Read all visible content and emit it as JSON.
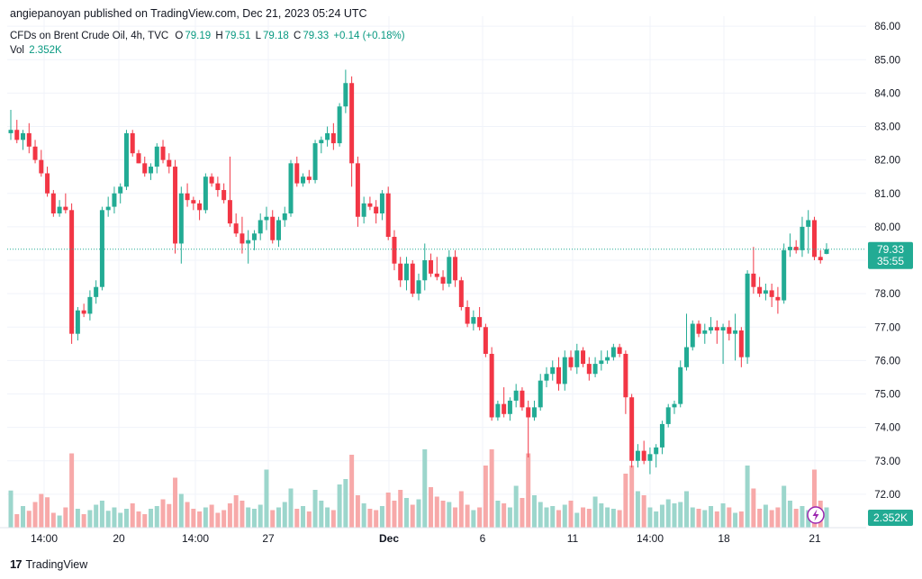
{
  "header": {
    "publisher": "angiepanoyan published on TradingView.com, Dec 21, 2023 05:24 UTC"
  },
  "legend": {
    "symbol": "CFDs on Brent Crude Oil, 4h, TVC",
    "o_label": "O",
    "o_value": "79.19",
    "h_label": "H",
    "h_value": "79.51",
    "l_label": "L",
    "l_value": "79.18",
    "c_label": "C",
    "c_value": "79.33",
    "change": "+0.14 (+0.18%)",
    "vol_label": "Vol",
    "vol_value": "2.352K"
  },
  "price_badge": {
    "price": "79.33",
    "countdown": "35:55",
    "color": "#22ab94"
  },
  "volume_badge": {
    "value": "2.352K",
    "color": "#22ab94"
  },
  "colors": {
    "up": "#22ab94",
    "down": "#f23645",
    "vol_up": "#9cd6cc",
    "vol_down": "#f7a9a9"
  },
  "footer": {
    "brand": "TradingView",
    "logo_text": "17"
  },
  "chart_data": {
    "type": "candlestick",
    "symbol": "CFDs on Brent Crude Oil",
    "interval": "4h",
    "y_ticks": [
      "86.00",
      "85.00",
      "84.00",
      "83.00",
      "82.00",
      "81.00",
      "80.00",
      "79.00",
      "78.00",
      "77.00",
      "76.00",
      "75.00",
      "74.00",
      "73.00",
      "72.00"
    ],
    "y_range": [
      71.0,
      86.3
    ],
    "x_tick_labels": [
      "14:00",
      "20",
      "14:00",
      "27",
      "Dec",
      "6",
      "11",
      "14:00",
      "18",
      "21"
    ],
    "last_price": 79.33,
    "grid": true,
    "ohlc": [
      [
        82.8,
        83.5,
        82.6,
        82.9
      ],
      [
        82.9,
        83.2,
        82.5,
        82.6
      ],
      [
        82.6,
        82.9,
        82.3,
        82.8
      ],
      [
        82.8,
        83.1,
        82.2,
        82.4
      ],
      [
        82.4,
        82.6,
        81.9,
        82.0
      ],
      [
        82.0,
        82.3,
        81.5,
        81.6
      ],
      [
        81.6,
        81.8,
        80.9,
        81.0
      ],
      [
        81.0,
        81.1,
        80.3,
        80.4
      ],
      [
        80.4,
        80.8,
        80.3,
        80.6
      ],
      [
        80.6,
        81.0,
        80.4,
        80.5
      ],
      [
        80.5,
        80.7,
        76.5,
        76.8
      ],
      [
        76.8,
        77.6,
        76.6,
        77.5
      ],
      [
        77.5,
        77.7,
        77.3,
        77.4
      ],
      [
        77.4,
        78.1,
        77.2,
        77.9
      ],
      [
        77.9,
        78.4,
        77.7,
        78.2
      ],
      [
        78.2,
        80.6,
        78.1,
        80.5
      ],
      [
        80.5,
        80.9,
        80.3,
        80.6
      ],
      [
        80.6,
        81.2,
        80.4,
        81.0
      ],
      [
        81.0,
        81.3,
        80.7,
        81.2
      ],
      [
        81.2,
        82.9,
        81.1,
        82.8
      ],
      [
        82.8,
        82.9,
        82.1,
        82.2
      ],
      [
        82.2,
        82.3,
        81.9,
        81.9
      ],
      [
        81.9,
        82.1,
        81.5,
        81.6
      ],
      [
        81.6,
        81.9,
        81.4,
        81.8
      ],
      [
        81.8,
        82.5,
        81.6,
        82.4
      ],
      [
        82.4,
        82.6,
        81.9,
        82.0
      ],
      [
        82.0,
        82.2,
        81.6,
        81.8
      ],
      [
        81.8,
        82.0,
        79.2,
        79.5
      ],
      [
        79.5,
        81.2,
        78.9,
        81.0
      ],
      [
        81.0,
        81.3,
        80.6,
        80.8
      ],
      [
        80.8,
        80.9,
        80.5,
        80.7
      ],
      [
        80.7,
        80.8,
        80.2,
        80.5
      ],
      [
        80.5,
        81.6,
        80.4,
        81.5
      ],
      [
        81.5,
        81.6,
        81.2,
        81.3
      ],
      [
        81.3,
        81.5,
        80.9,
        81.1
      ],
      [
        81.1,
        81.3,
        80.7,
        80.8
      ],
      [
        80.8,
        82.1,
        80.0,
        80.1
      ],
      [
        80.1,
        80.4,
        79.7,
        79.8
      ],
      [
        79.8,
        80.3,
        79.2,
        79.5
      ],
      [
        79.5,
        79.9,
        78.9,
        79.6
      ],
      [
        79.6,
        79.9,
        79.3,
        79.8
      ],
      [
        79.8,
        80.4,
        79.6,
        80.2
      ],
      [
        80.2,
        80.6,
        79.9,
        80.3
      ],
      [
        80.3,
        80.5,
        79.5,
        79.6
      ],
      [
        79.6,
        80.3,
        79.4,
        80.2
      ],
      [
        80.2,
        80.6,
        80.0,
        80.4
      ],
      [
        80.4,
        82.0,
        80.3,
        81.9
      ],
      [
        81.9,
        82.1,
        81.2,
        81.3
      ],
      [
        81.3,
        81.6,
        81.2,
        81.5
      ],
      [
        81.5,
        81.7,
        81.3,
        81.4
      ],
      [
        81.4,
        82.6,
        81.3,
        82.5
      ],
      [
        82.5,
        82.7,
        82.2,
        82.6
      ],
      [
        82.6,
        83.0,
        82.4,
        82.8
      ],
      [
        82.8,
        83.1,
        82.3,
        82.5
      ],
      [
        82.5,
        83.7,
        82.4,
        83.6
      ],
      [
        83.6,
        84.7,
        83.4,
        84.3
      ],
      [
        84.3,
        84.5,
        81.2,
        81.9
      ],
      [
        81.9,
        82.1,
        80.0,
        80.3
      ],
      [
        80.3,
        80.9,
        80.1,
        80.7
      ],
      [
        80.7,
        80.9,
        80.5,
        80.6
      ],
      [
        80.6,
        80.8,
        80.1,
        80.4
      ],
      [
        80.4,
        81.1,
        80.2,
        81.0
      ],
      [
        81.0,
        81.2,
        79.6,
        79.7
      ],
      [
        79.7,
        79.9,
        78.7,
        78.9
      ],
      [
        78.9,
        79.1,
        78.2,
        78.4
      ],
      [
        78.4,
        79.1,
        78.1,
        78.9
      ],
      [
        78.9,
        79.0,
        77.9,
        78.0
      ],
      [
        78.0,
        78.6,
        77.8,
        78.4
      ],
      [
        78.4,
        79.5,
        78.1,
        79.0
      ],
      [
        79.0,
        79.2,
        78.5,
        78.6
      ],
      [
        78.6,
        79.1,
        78.4,
        78.5
      ],
      [
        78.5,
        78.7,
        78.1,
        78.3
      ],
      [
        78.3,
        79.3,
        78.2,
        79.1
      ],
      [
        79.1,
        79.3,
        78.2,
        78.4
      ],
      [
        78.4,
        78.5,
        77.5,
        77.6
      ],
      [
        77.6,
        77.8,
        77.0,
        77.1
      ],
      [
        77.1,
        77.5,
        76.9,
        77.3
      ],
      [
        77.3,
        77.6,
        76.9,
        77.0
      ],
      [
        77.0,
        77.1,
        76.1,
        76.2
      ],
      [
        76.2,
        76.4,
        74.2,
        74.3
      ],
      [
        74.3,
        74.8,
        74.2,
        74.7
      ],
      [
        74.7,
        75.2,
        74.3,
        74.4
      ],
      [
        74.4,
        74.9,
        74.2,
        74.8
      ],
      [
        74.8,
        75.3,
        74.6,
        75.1
      ],
      [
        75.1,
        75.2,
        74.5,
        74.6
      ],
      [
        74.6,
        74.8,
        73.1,
        74.3
      ],
      [
        74.3,
        74.8,
        74.2,
        74.6
      ],
      [
        74.6,
        75.6,
        74.5,
        75.4
      ],
      [
        75.4,
        75.8,
        75.2,
        75.6
      ],
      [
        75.6,
        76.0,
        75.4,
        75.8
      ],
      [
        75.8,
        76.1,
        75.1,
        75.3
      ],
      [
        75.3,
        76.3,
        75.1,
        76.1
      ],
      [
        76.1,
        76.3,
        75.7,
        75.8
      ],
      [
        75.8,
        76.5,
        75.6,
        76.3
      ],
      [
        76.3,
        76.4,
        75.8,
        75.9
      ],
      [
        75.9,
        76.1,
        75.4,
        75.6
      ],
      [
        75.6,
        76.1,
        75.5,
        75.9
      ],
      [
        75.9,
        76.3,
        75.7,
        76.0
      ],
      [
        76.0,
        76.3,
        75.9,
        76.1
      ],
      [
        76.1,
        76.5,
        76.0,
        76.4
      ],
      [
        76.4,
        76.5,
        76.1,
        76.2
      ],
      [
        76.2,
        76.3,
        74.4,
        74.9
      ],
      [
        74.9,
        75.0,
        72.8,
        73.0
      ],
      [
        73.0,
        73.5,
        72.8,
        73.3
      ],
      [
        73.3,
        73.6,
        72.9,
        73.0
      ],
      [
        73.0,
        73.4,
        72.6,
        73.2
      ],
      [
        73.2,
        73.5,
        72.8,
        73.4
      ],
      [
        73.4,
        74.2,
        73.2,
        74.1
      ],
      [
        74.1,
        74.7,
        74.0,
        74.6
      ],
      [
        74.6,
        74.8,
        74.4,
        74.7
      ],
      [
        74.7,
        76.0,
        74.6,
        75.8
      ],
      [
        75.8,
        77.4,
        75.7,
        76.4
      ],
      [
        76.4,
        77.2,
        76.3,
        77.1
      ],
      [
        77.1,
        77.2,
        76.7,
        76.8
      ],
      [
        76.8,
        77.1,
        76.5,
        76.9
      ],
      [
        76.9,
        77.3,
        76.8,
        77.0
      ],
      [
        77.0,
        77.2,
        76.5,
        76.9
      ],
      [
        76.9,
        77.1,
        75.9,
        77.0
      ],
      [
        77.0,
        77.2,
        76.6,
        76.8
      ],
      [
        76.8,
        77.4,
        76.0,
        76.9
      ],
      [
        76.9,
        77.0,
        75.8,
        76.1
      ],
      [
        76.1,
        78.7,
        75.9,
        78.6
      ],
      [
        78.6,
        79.4,
        78.0,
        78.2
      ],
      [
        78.2,
        78.5,
        77.9,
        78.0
      ],
      [
        78.0,
        78.3,
        77.8,
        78.1
      ],
      [
        78.1,
        78.3,
        77.6,
        77.9
      ],
      [
        77.9,
        78.2,
        77.4,
        77.8
      ],
      [
        77.8,
        79.5,
        77.7,
        79.3
      ],
      [
        79.3,
        79.8,
        79.1,
        79.4
      ],
      [
        79.4,
        79.6,
        79.2,
        79.3
      ],
      [
        79.3,
        80.3,
        79.1,
        80.0
      ],
      [
        80.0,
        80.5,
        79.2,
        80.2
      ],
      [
        80.2,
        80.3,
        79.0,
        79.1
      ],
      [
        79.1,
        79.3,
        78.9,
        79.0
      ],
      [
        79.19,
        79.51,
        79.18,
        79.33
      ]
    ],
    "volumes": [
      0.55,
      0.2,
      0.32,
      0.25,
      0.38,
      0.5,
      0.45,
      0.22,
      0.18,
      0.3,
      1.1,
      0.28,
      0.2,
      0.26,
      0.34,
      0.4,
      0.25,
      0.3,
      0.22,
      0.28,
      0.36,
      0.24,
      0.2,
      0.28,
      0.32,
      0.42,
      0.35,
      0.74,
      0.5,
      0.38,
      0.28,
      0.24,
      0.3,
      0.34,
      0.22,
      0.26,
      0.36,
      0.48,
      0.4,
      0.3,
      0.28,
      0.34,
      0.86,
      0.26,
      0.3,
      0.38,
      0.58,
      0.28,
      0.32,
      0.24,
      0.56,
      0.4,
      0.3,
      0.26,
      0.64,
      0.72,
      1.08,
      0.48,
      0.36,
      0.28,
      0.26,
      0.32,
      0.52,
      0.4,
      0.56,
      0.44,
      0.34,
      0.42,
      1.16,
      0.6,
      0.46,
      0.4,
      0.38,
      0.3,
      0.54,
      0.34,
      0.26,
      0.3,
      0.92,
      1.16,
      0.4,
      0.36,
      0.3,
      0.62,
      0.44,
      1.1,
      0.48,
      0.38,
      0.3,
      0.32,
      0.26,
      0.34,
      0.4,
      0.22,
      0.3,
      0.28,
      0.46,
      0.36,
      0.3,
      0.28,
      0.26,
      0.8,
      0.92,
      0.54,
      0.48,
      0.3,
      0.24,
      0.34,
      0.42,
      0.36,
      0.38,
      0.54,
      0.3,
      0.28,
      0.26,
      0.32,
      0.24,
      0.36,
      0.3,
      0.22,
      0.24,
      0.92,
      0.58,
      0.28,
      0.34,
      0.26,
      0.3,
      0.62,
      0.4,
      0.28,
      0.32,
      0.26,
      0.86,
      0.4,
      0.3
    ],
    "volume_axis_value": "2.352K"
  }
}
